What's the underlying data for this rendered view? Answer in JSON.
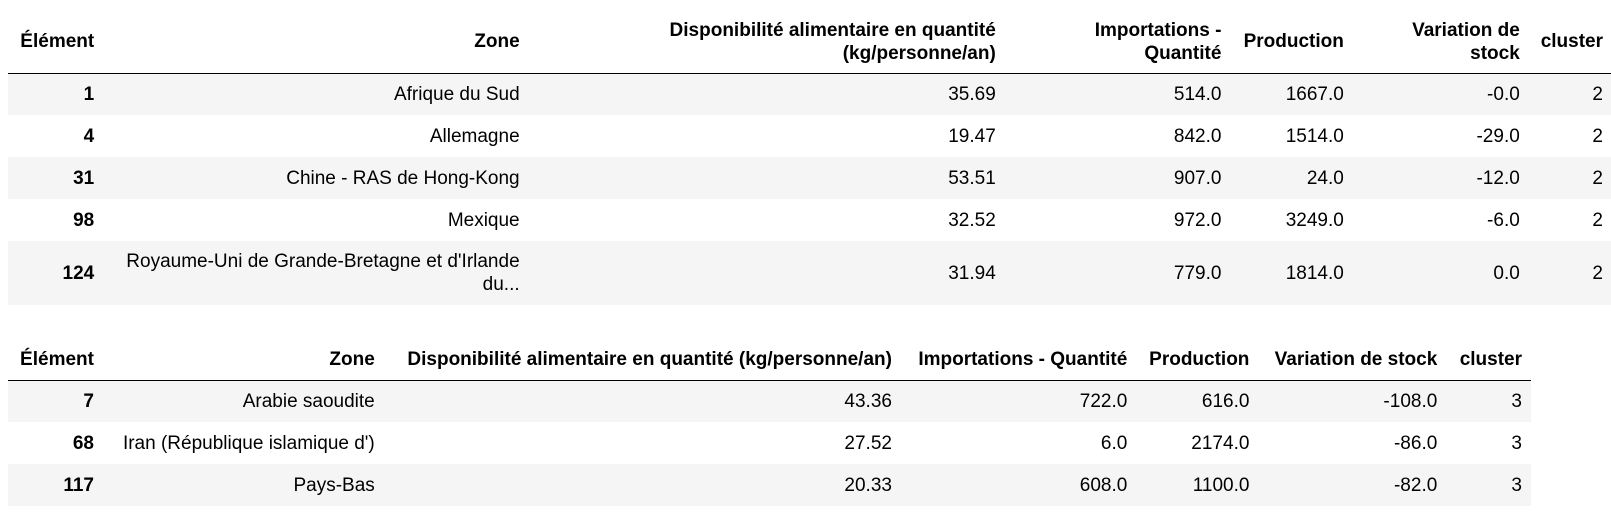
{
  "table1": {
    "headers": [
      "Élément",
      "Zone",
      "Disponibilité alimentaire en quantité (kg/personne/an)",
      "Importations - Quantité",
      "Production",
      "Variation de stock",
      "cluster"
    ],
    "rows": [
      {
        "index": "1",
        "zone": "Afrique du Sud",
        "dispo": "35.69",
        "imports": "514.0",
        "production": "1667.0",
        "stock": "-0.0",
        "cluster": "2"
      },
      {
        "index": "4",
        "zone": "Allemagne",
        "dispo": "19.47",
        "imports": "842.0",
        "production": "1514.0",
        "stock": "-29.0",
        "cluster": "2"
      },
      {
        "index": "31",
        "zone": "Chine - RAS de Hong-Kong",
        "dispo": "53.51",
        "imports": "907.0",
        "production": "24.0",
        "stock": "-12.0",
        "cluster": "2"
      },
      {
        "index": "98",
        "zone": "Mexique",
        "dispo": "32.52",
        "imports": "972.0",
        "production": "3249.0",
        "stock": "-6.0",
        "cluster": "2"
      },
      {
        "index": "124",
        "zone": "Royaume-Uni de Grande-Bretagne et d'Irlande du...",
        "dispo": "31.94",
        "imports": "779.0",
        "production": "1814.0",
        "stock": "0.0",
        "cluster": "2"
      }
    ]
  },
  "table2": {
    "headers": [
      "Élément",
      "Zone",
      "Disponibilité alimentaire en quantité (kg/personne/an)",
      "Importations - Quantité",
      "Production",
      "Variation de stock",
      "cluster"
    ],
    "rows": [
      {
        "index": "7",
        "zone": "Arabie saoudite",
        "dispo": "43.36",
        "imports": "722.0",
        "production": "616.0",
        "stock": "-108.0",
        "cluster": "3"
      },
      {
        "index": "68",
        "zone": "Iran (République islamique d')",
        "dispo": "27.52",
        "imports": "6.0",
        "production": "2174.0",
        "stock": "-86.0",
        "cluster": "3"
      },
      {
        "index": "117",
        "zone": "Pays-Bas",
        "dispo": "20.33",
        "imports": "608.0",
        "production": "1100.0",
        "stock": "-82.0",
        "cluster": "3"
      }
    ]
  }
}
